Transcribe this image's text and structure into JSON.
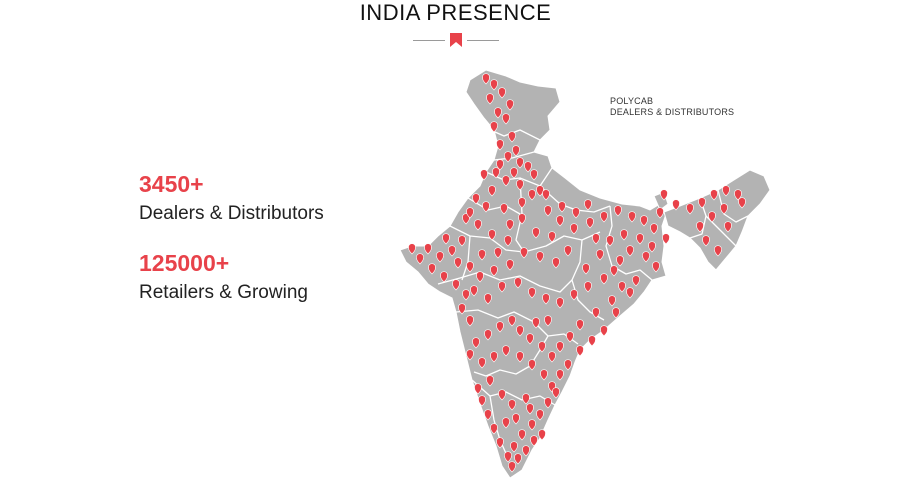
{
  "header": {
    "title": "INDIA PRESENCE"
  },
  "stats": [
    {
      "value": "3450+",
      "label": "Dealers & Distributors"
    },
    {
      "value": "125000+",
      "label": "Retailers & Growing"
    }
  ],
  "map": {
    "legend": [
      "POLYCAB",
      "DEALERS & DISTRIBUTORS"
    ],
    "land_color": "#b3b3b3",
    "border_color": "#ffffff",
    "pin_color": "#e8424a"
  }
}
